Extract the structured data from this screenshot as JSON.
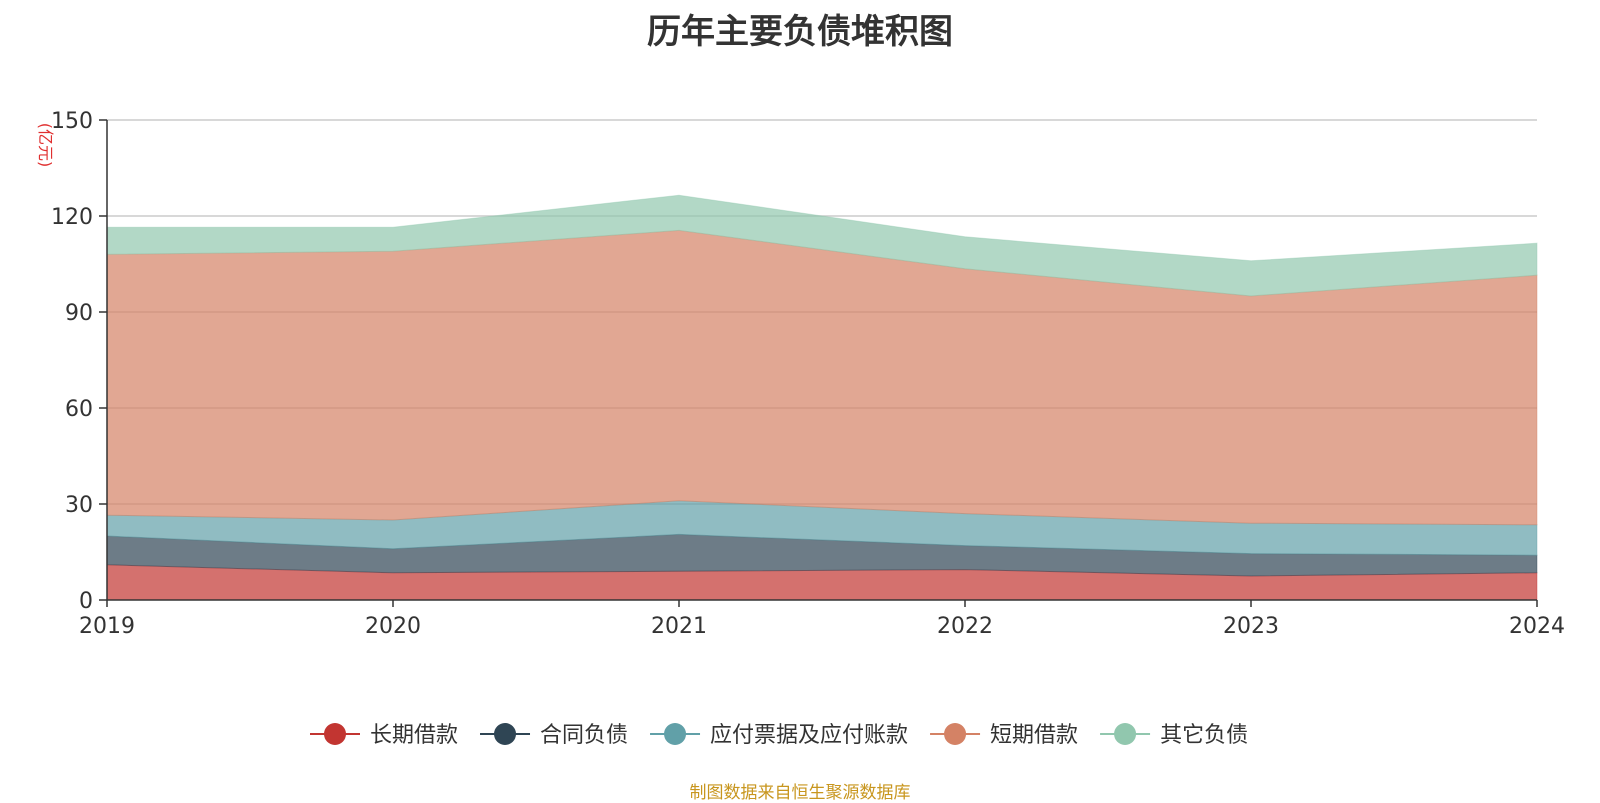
{
  "chart_data": {
    "type": "area",
    "stacked": true,
    "title": "历年主要负债堆积图",
    "unit_label": "(亿元)",
    "categories": [
      "2019",
      "2020",
      "2021",
      "2022",
      "2023",
      "2024"
    ],
    "y_ticks": [
      0,
      30,
      60,
      90,
      120,
      150
    ],
    "ylim": [
      0,
      150
    ],
    "grid": true,
    "legend_position": "bottom",
    "series": [
      {
        "name": "长期借款",
        "color": "#c23531",
        "values": [
          11,
          8.5,
          9,
          9.5,
          7.5,
          8.5
        ]
      },
      {
        "name": "合同负债",
        "color": "#2f4554",
        "values": [
          9,
          7.5,
          11.5,
          7.5,
          7,
          5.5
        ]
      },
      {
        "name": "应付票据及应付账款",
        "color": "#61a0a8",
        "values": [
          6.5,
          9,
          10.5,
          10,
          9.5,
          9.5
        ]
      },
      {
        "name": "短期借款",
        "color": "#d48265",
        "values": [
          81.5,
          84,
          84.5,
          76.5,
          71,
          78
        ]
      },
      {
        "name": "其它负债",
        "color": "#91c7ae",
        "values": [
          8.5,
          7.5,
          11,
          10,
          11,
          10
        ]
      }
    ]
  },
  "source_text": "制图数据来自恒生聚源数据库"
}
